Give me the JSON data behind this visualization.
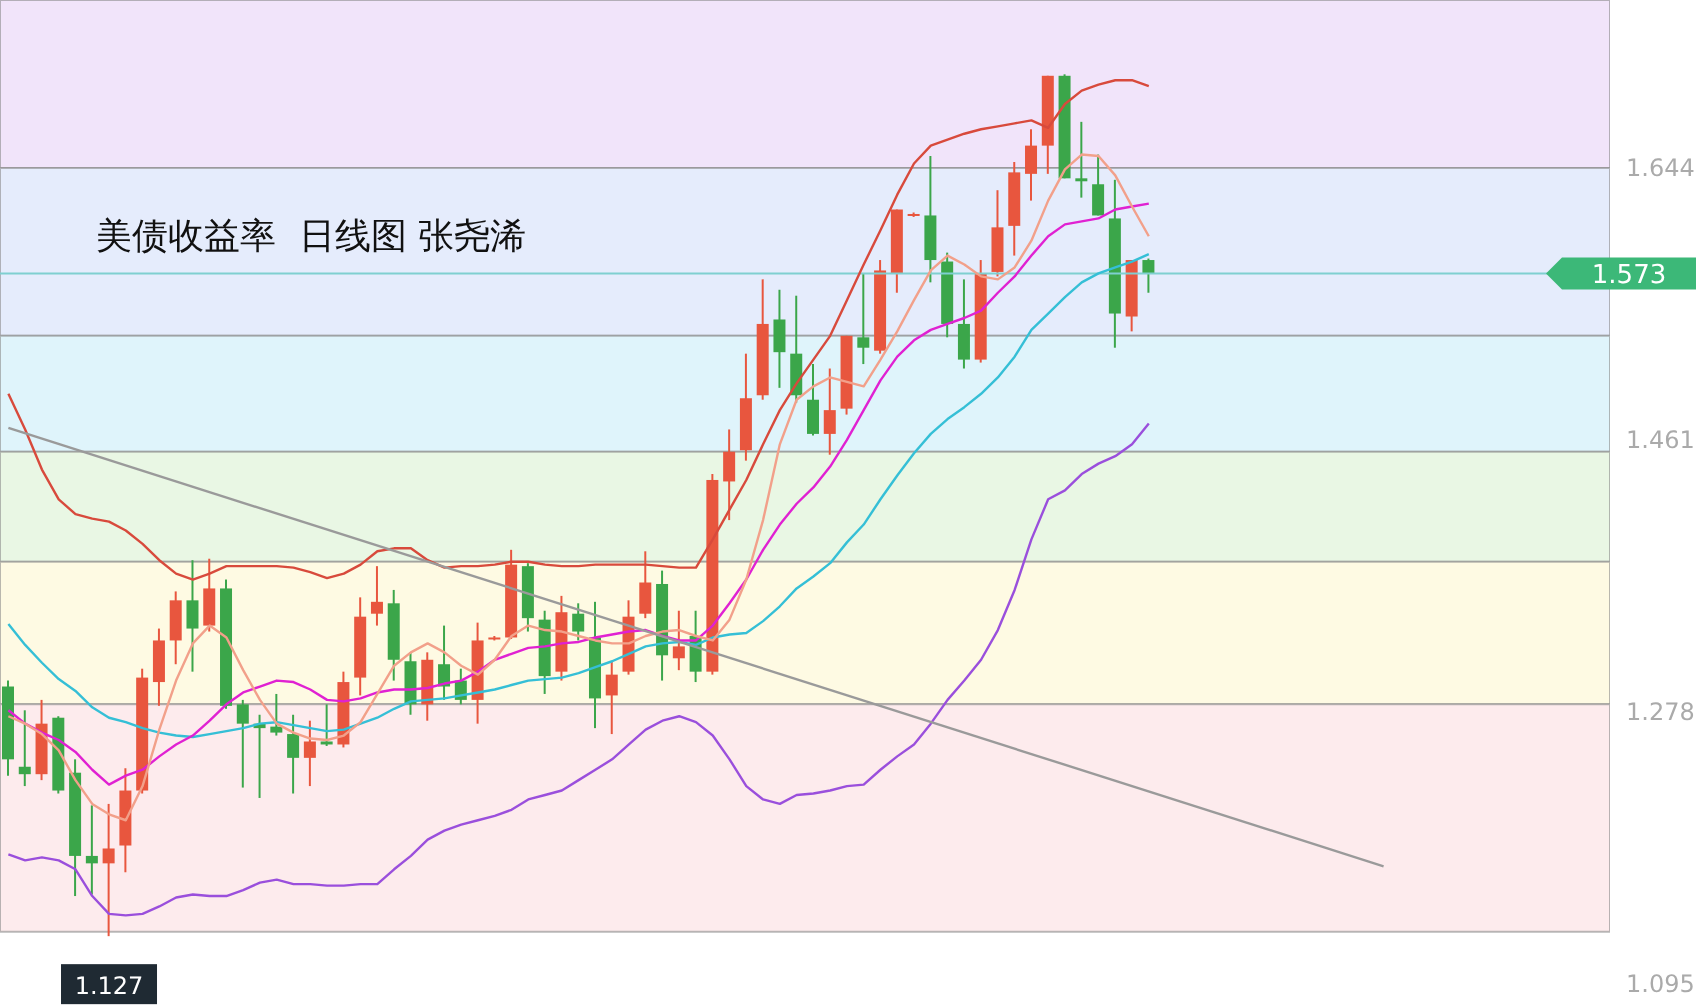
{
  "chart_data": {
    "type": "candlestick",
    "title": "美债收益率  日线图 张尧浠",
    "categories": [
      null,
      null,
      null,
      null,
      null,
      null,
      null,
      null,
      null,
      null,
      null,
      null,
      null,
      null,
      null,
      null,
      null,
      null,
      null,
      null,
      null,
      null,
      null,
      null,
      null,
      null,
      null,
      null,
      null,
      null,
      null,
      null,
      null,
      null,
      null,
      null,
      null,
      null,
      null,
      null,
      null,
      null,
      null,
      null,
      null,
      null,
      null,
      null,
      null,
      null,
      null,
      null,
      null,
      null,
      null,
      null,
      null,
      null,
      null,
      null,
      null,
      null,
      null,
      null,
      null,
      null,
      null,
      null,
      null,
      null,
      null,
      null,
      null,
      null,
      null,
      null,
      null,
      null,
      null,
      null,
      null,
      null,
      null,
      null,
      null,
      null,
      null,
      null,
      null,
      null,
      null,
      null,
      null,
      null,
      null,
      null
    ],
    "ohlc": [
      [
        1.295,
        1.299,
        1.235,
        1.246
      ],
      [
        1.241,
        1.279,
        1.228,
        1.236
      ],
      [
        1.236,
        1.286,
        1.232,
        1.27
      ],
      [
        1.274,
        1.275,
        1.223,
        1.225
      ],
      [
        1.237,
        1.246,
        1.154,
        1.181
      ],
      [
        1.181,
        1.215,
        1.155,
        1.176
      ],
      [
        1.176,
        1.216,
        1.127,
        1.186
      ],
      [
        1.188,
        1.24,
        1.17,
        1.225
      ],
      [
        1.225,
        1.307,
        1.223,
        1.301
      ],
      [
        1.298,
        1.334,
        1.282,
        1.326
      ],
      [
        1.326,
        1.359,
        1.31,
        1.353
      ],
      [
        1.353,
        1.38,
        1.305,
        1.334
      ],
      [
        1.336,
        1.381,
        1.332,
        1.361
      ],
      [
        1.361,
        1.367,
        1.28,
        1.282
      ],
      [
        1.283,
        1.286,
        1.227,
        1.27
      ],
      [
        1.27,
        1.276,
        1.22,
        1.267
      ],
      [
        1.268,
        1.29,
        1.262,
        1.264
      ],
      [
        1.263,
        1.276,
        1.223,
        1.247
      ],
      [
        1.247,
        1.272,
        1.228,
        1.258
      ],
      [
        1.258,
        1.283,
        1.255,
        1.256
      ],
      [
        1.256,
        1.305,
        1.254,
        1.298
      ],
      [
        1.301,
        1.355,
        1.289,
        1.342
      ],
      [
        1.344,
        1.376,
        1.336,
        1.352
      ],
      [
        1.351,
        1.36,
        1.299,
        1.313
      ],
      [
        1.312,
        1.318,
        1.276,
        1.283
      ],
      [
        1.283,
        1.318,
        1.272,
        1.313
      ],
      [
        1.31,
        1.336,
        1.286,
        1.295
      ],
      [
        1.299,
        1.307,
        1.283,
        1.286
      ],
      [
        1.286,
        1.338,
        1.27,
        1.326
      ],
      [
        1.327,
        1.329,
        1.326,
        1.328
      ],
      [
        1.328,
        1.387,
        1.327,
        1.377
      ],
      [
        1.376,
        1.378,
        1.332,
        1.341
      ],
      [
        1.34,
        1.346,
        1.29,
        1.302
      ],
      [
        1.305,
        1.356,
        1.299,
        1.345
      ],
      [
        1.344,
        1.351,
        1.326,
        1.332
      ],
      [
        1.328,
        1.352,
        1.267,
        1.287
      ],
      [
        1.289,
        1.312,
        1.263,
        1.303
      ],
      [
        1.305,
        1.353,
        1.303,
        1.342
      ],
      [
        1.344,
        1.386,
        1.341,
        1.365
      ],
      [
        1.364,
        1.373,
        1.299,
        1.316
      ],
      [
        1.314,
        1.346,
        1.306,
        1.322
      ],
      [
        1.329,
        1.346,
        1.298,
        1.305
      ],
      [
        1.305,
        1.438,
        1.303,
        1.434
      ],
      [
        1.433,
        1.468,
        1.407,
        1.453
      ],
      [
        1.454,
        1.519,
        1.447,
        1.489
      ],
      [
        1.491,
        1.569,
        1.488,
        1.539
      ],
      [
        1.542,
        1.562,
        1.496,
        1.52
      ],
      [
        1.519,
        1.558,
        1.486,
        1.491
      ],
      [
        1.488,
        1.512,
        1.464,
        1.465
      ],
      [
        1.465,
        1.509,
        1.451,
        1.481
      ],
      [
        1.482,
        1.531,
        1.478,
        1.531
      ],
      [
        1.53,
        1.573,
        1.512,
        1.523
      ],
      [
        1.521,
        1.582,
        1.519,
        1.575
      ],
      [
        1.573,
        1.616,
        1.56,
        1.616
      ],
      [
        1.612,
        1.614,
        1.611,
        1.613
      ],
      [
        1.612,
        1.652,
        1.567,
        1.582
      ],
      [
        1.581,
        1.587,
        1.53,
        1.539
      ],
      [
        1.539,
        1.569,
        1.509,
        1.515
      ],
      [
        1.515,
        1.582,
        1.513,
        1.573
      ],
      [
        1.574,
        1.629,
        1.571,
        1.604
      ],
      [
        1.605,
        1.648,
        1.585,
        1.641
      ],
      [
        1.64,
        1.67,
        1.622,
        1.659
      ],
      [
        1.659,
        1.706,
        1.64,
        1.706
      ],
      [
        1.706,
        1.707,
        1.637,
        1.637
      ],
      [
        1.637,
        1.675,
        1.624,
        1.635
      ],
      [
        1.633,
        1.653,
        1.612,
        1.612
      ],
      [
        1.61,
        1.636,
        1.523,
        1.546
      ],
      [
        1.544,
        1.582,
        1.534,
        1.582
      ],
      [
        1.582,
        1.583,
        1.56,
        1.573
      ],
      null,
      null,
      null,
      null,
      null,
      null,
      null,
      null,
      null,
      null,
      null,
      null,
      null,
      null,
      null,
      null,
      null,
      null,
      null,
      null,
      null,
      null,
      null,
      null,
      null,
      null,
      null
    ],
    "colors": [
      "#3ba64a",
      "#3ba64a",
      "#e8563e",
      "#3ba64a",
      "#3ba64a",
      "#3ba64a",
      "#e8563e",
      "#e8563e",
      "#e8563e",
      "#e8563e",
      "#e8563e",
      "#3ba64a",
      "#e8563e",
      "#3ba64a",
      "#3ba64a",
      "#3ba64a",
      "#3ba64a",
      "#3ba64a",
      "#e8563e",
      "#3ba64a",
      "#e8563e",
      "#e8563e",
      "#e8563e",
      "#3ba64a",
      "#3ba64a",
      "#e8563e",
      "#3ba64a",
      "#3ba64a",
      "#e8563e",
      "#e8563e",
      "#e8563e",
      "#3ba64a",
      "#3ba64a",
      "#e8563e",
      "#3ba64a",
      "#3ba64a",
      "#e8563e",
      "#e8563e",
      "#e8563e",
      "#3ba64a",
      "#e8563e",
      "#3ba64a",
      "#e8563e",
      "#e8563e",
      "#e8563e",
      "#e8563e",
      "#3ba64a",
      "#3ba64a",
      "#3ba64a",
      "#e8563e",
      "#e8563e",
      "#3ba64a",
      "#e8563e",
      "#e8563e",
      "#e8563e",
      "#3ba64a",
      "#3ba64a",
      "#3ba64a",
      "#e8563e",
      "#e8563e",
      "#e8563e",
      "#e8563e",
      "#e8563e",
      "#3ba64a",
      "#3ba64a",
      "#3ba64a",
      "#3ba64a",
      "#e8563e",
      "#3ba64a",
      null,
      null,
      null,
      null,
      null,
      null,
      null,
      null,
      null,
      null,
      null,
      null,
      null,
      null,
      null,
      null,
      null,
      null,
      null,
      null,
      null,
      null,
      null,
      null,
      null,
      null,
      null
    ],
    "series": [
      {
        "type": "line",
        "color": "#d84a3c",
        "values": [
          1.492,
          1.468,
          1.441,
          1.421,
          1.411,
          1.408,
          1.406,
          1.4,
          1.391,
          1.38,
          1.371,
          1.367,
          1.371,
          1.376,
          1.376,
          1.376,
          1.376,
          1.375,
          1.372,
          1.368,
          1.371,
          1.377,
          1.386,
          1.388,
          1.388,
          1.38,
          1.375,
          1.376,
          1.376,
          1.377,
          1.379,
          1.379,
          1.377,
          1.376,
          1.376,
          1.377,
          1.377,
          1.377,
          1.377,
          1.376,
          1.375,
          1.375,
          1.394,
          1.414,
          1.434,
          1.458,
          1.481,
          1.499,
          1.515,
          1.531,
          1.555,
          1.579,
          1.602,
          1.626,
          1.647,
          1.659,
          1.663,
          1.667,
          1.67,
          1.672,
          1.674,
          1.676,
          1.671,
          1.687,
          1.696,
          1.7,
          1.703,
          1.703,
          1.699,
          null,
          null,
          null,
          null,
          null,
          null,
          null,
          null,
          null,
          null,
          null,
          null,
          null,
          null,
          null,
          null,
          null,
          null,
          null,
          null,
          null,
          null,
          null,
          null,
          null,
          null,
          null
        ]
      },
      {
        "type": "line",
        "color": "#9a4fdc",
        "values": [
          1.182,
          1.178,
          1.18,
          1.178,
          1.172,
          1.154,
          1.142,
          1.141,
          1.142,
          1.147,
          1.153,
          1.155,
          1.154,
          1.154,
          1.158,
          1.163,
          1.165,
          1.162,
          1.162,
          1.161,
          1.161,
          1.162,
          1.162,
          1.172,
          1.181,
          1.192,
          1.198,
          1.202,
          1.205,
          1.208,
          1.212,
          1.219,
          1.222,
          1.225,
          1.232,
          1.239,
          1.246,
          1.256,
          1.266,
          1.272,
          1.275,
          1.271,
          1.262,
          1.246,
          1.228,
          1.219,
          1.216,
          1.222,
          1.223,
          1.225,
          1.228,
          1.229,
          1.239,
          1.248,
          1.256,
          1.27,
          1.286,
          1.299,
          1.313,
          1.333,
          1.36,
          1.394,
          1.421,
          1.427,
          1.438,
          1.445,
          1.45,
          1.458,
          1.472,
          null,
          null,
          null,
          null,
          null,
          null,
          null,
          null,
          null,
          null,
          null,
          null,
          null,
          null,
          null,
          null,
          null,
          null,
          null,
          null,
          null,
          null,
          null,
          null,
          null,
          null,
          null
        ]
      },
      {
        "type": "line",
        "color": "#35bfd6",
        "values": [
          1.337,
          1.323,
          1.311,
          1.3,
          1.292,
          1.281,
          1.274,
          1.271,
          1.267,
          1.264,
          1.262,
          1.261,
          1.263,
          1.265,
          1.267,
          1.27,
          1.271,
          1.269,
          1.267,
          1.265,
          1.266,
          1.27,
          1.274,
          1.28,
          1.285,
          1.286,
          1.287,
          1.289,
          1.291,
          1.293,
          1.296,
          1.299,
          1.3,
          1.301,
          1.304,
          1.308,
          1.312,
          1.317,
          1.322,
          1.324,
          1.325,
          1.323,
          1.328,
          1.33,
          1.331,
          1.339,
          1.349,
          1.361,
          1.369,
          1.378,
          1.392,
          1.404,
          1.421,
          1.437,
          1.452,
          1.465,
          1.475,
          1.483,
          1.492,
          1.503,
          1.517,
          1.535,
          1.546,
          1.557,
          1.567,
          1.573,
          1.577,
          1.581,
          1.586,
          null,
          null,
          null,
          null,
          null,
          null,
          null,
          null,
          null,
          null,
          null,
          null,
          null,
          null,
          null,
          null,
          null,
          null,
          null,
          null,
          null,
          null,
          null,
          null,
          null,
          null,
          null
        ]
      },
      {
        "type": "line",
        "color": "#e021d2",
        "values": [
          1.279,
          1.27,
          1.264,
          1.259,
          1.251,
          1.239,
          1.229,
          1.235,
          1.239,
          1.248,
          1.256,
          1.262,
          1.272,
          1.283,
          1.291,
          1.295,
          1.299,
          1.298,
          1.293,
          1.286,
          1.285,
          1.287,
          1.291,
          1.293,
          1.293,
          1.294,
          1.297,
          1.299,
          1.305,
          1.313,
          1.317,
          1.321,
          1.322,
          1.324,
          1.325,
          1.328,
          1.33,
          1.332,
          1.333,
          1.329,
          1.326,
          1.326,
          1.336,
          1.351,
          1.367,
          1.387,
          1.404,
          1.418,
          1.429,
          1.443,
          1.461,
          1.481,
          1.501,
          1.517,
          1.528,
          1.535,
          1.539,
          1.543,
          1.548,
          1.56,
          1.571,
          1.585,
          1.598,
          1.606,
          1.608,
          1.61,
          1.616,
          1.618,
          1.62,
          null,
          null,
          null,
          null,
          null,
          null,
          null,
          null,
          null,
          null,
          null,
          null,
          null,
          null,
          null,
          null,
          null,
          null,
          null,
          null,
          null,
          null,
          null,
          null,
          null,
          null,
          null
        ]
      },
      {
        "type": "line",
        "color": "#f2a08a",
        "values": [
          1.275,
          1.27,
          1.263,
          1.252,
          1.232,
          1.216,
          1.209,
          1.205,
          1.228,
          1.266,
          1.299,
          1.324,
          1.336,
          1.328,
          1.306,
          1.286,
          1.27,
          1.264,
          1.26,
          1.259,
          1.262,
          1.271,
          1.29,
          1.309,
          1.318,
          1.324,
          1.318,
          1.309,
          1.303,
          1.313,
          1.329,
          1.336,
          1.333,
          1.332,
          1.329,
          1.326,
          1.324,
          1.324,
          1.329,
          1.332,
          1.333,
          1.329,
          1.326,
          1.34,
          1.367,
          1.407,
          1.458,
          1.488,
          1.497,
          1.503,
          1.5,
          1.497,
          1.515,
          1.534,
          1.555,
          1.575,
          1.585,
          1.579,
          1.571,
          1.569,
          1.577,
          1.595,
          1.622,
          1.643,
          1.653,
          1.652,
          1.639,
          1.618,
          1.598,
          null,
          null,
          null,
          null,
          null,
          null,
          null,
          null,
          null,
          null,
          null,
          null,
          null,
          null,
          null,
          null,
          null,
          null,
          null,
          null,
          null,
          null,
          null,
          null,
          null,
          null,
          null
        ]
      },
      {
        "type": "line",
        "color": "#9a9a9a",
        "values": [
          1.469,
          null,
          null,
          null,
          null,
          null,
          null,
          null,
          null,
          null,
          null,
          null,
          null,
          null,
          null,
          null,
          null,
          null,
          null,
          null,
          null,
          null,
          null,
          null,
          null,
          null,
          null,
          null,
          null,
          null,
          null,
          null,
          null,
          null,
          null,
          null,
          null,
          null,
          null,
          null,
          null,
          null,
          null,
          null,
          null,
          null,
          null,
          null,
          null,
          null,
          null,
          null,
          null,
          null,
          null,
          null,
          null,
          null,
          null,
          null,
          null,
          null,
          null,
          null,
          null,
          null,
          null,
          null,
          null,
          null,
          null,
          null,
          null,
          null,
          null,
          null,
          null,
          null,
          null,
          null,
          null,
          null,
          1.174,
          null,
          null,
          null,
          null,
          null,
          null,
          null,
          null,
          null,
          null,
          null,
          null,
          null
        ]
      }
    ],
    "ylim": [
      1.08,
      1.757
    ],
    "yticks": [
      1.644,
      1.461,
      1.278,
      1.095
    ],
    "tick_labels": "y",
    "bands": [
      {
        "axis": "y",
        "from": 1.644,
        "to": 1.757,
        "color": "#f1e4fa"
      },
      {
        "axis": "y",
        "from": 1.531,
        "to": 1.644,
        "color": "#e5ecfc"
      },
      {
        "axis": "y",
        "from": 1.453,
        "to": 1.531,
        "color": "#dff4fb"
      },
      {
        "axis": "y",
        "from": 1.379,
        "to": 1.453,
        "color": "#e9f7e4"
      },
      {
        "axis": "y",
        "from": 1.283,
        "to": 1.379,
        "color": "#fefae3"
      },
      {
        "axis": "y",
        "from": 1.13,
        "to": 1.283,
        "color": "#fdebed"
      }
    ],
    "ref_lines": [
      {
        "axis": "y",
        "value": 1.573,
        "label": "1.573",
        "color": "#7fcfd0"
      }
    ],
    "annotations": [
      {
        "text": "1.127",
        "y": 1.127
      }
    ]
  }
}
